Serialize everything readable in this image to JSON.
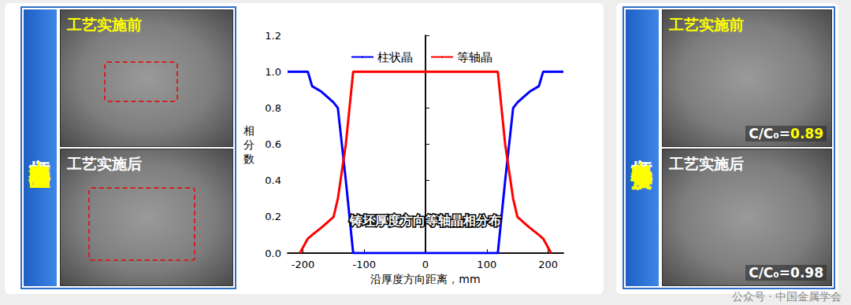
{
  "panels": [
    {
      "title_parts": [
        "方坯",
        "中心等轴晶区"
      ],
      "photos": [
        {
          "label": "工艺实施前"
        },
        {
          "label": "工艺实施后"
        }
      ]
    },
    {
      "title_parts": [
        "方坯",
        "中心低倍质量"
      ],
      "photos": [
        {
          "label": "工艺实施前",
          "ratio_label": "C/C₀=",
          "ratio": 0.89
        },
        {
          "label": "工艺实施后",
          "ratio_label": "C/C₀=",
          "ratio": 0.98
        }
      ]
    }
  ],
  "chart_data": {
    "type": "line",
    "caption": "铸坯厚度方向等轴晶相分布",
    "x_label": "沿厚度方向距离，mm",
    "y_label": "相分数",
    "x": [
      -225,
      -205,
      -192,
      -185,
      -170,
      -160,
      -150,
      -143,
      -130,
      -118,
      118,
      130,
      143,
      150,
      160,
      170,
      185,
      192,
      205,
      225
    ],
    "series": [
      {
        "name": "柱状晶",
        "color": "#0000ff",
        "values": [
          1.0,
          1.0,
          1.0,
          0.92,
          0.89,
          0.86,
          0.83,
          0.8,
          0.4,
          0.0,
          0.0,
          0.4,
          0.8,
          0.83,
          0.86,
          0.89,
          0.92,
          1.0,
          1.0,
          1.0
        ]
      },
      {
        "name": "等轴晶",
        "color": "#ff0000",
        "values": [
          null,
          0.0,
          0.08,
          0.1,
          0.14,
          0.17,
          0.2,
          0.3,
          0.6,
          1.0,
          1.0,
          0.6,
          0.3,
          0.2,
          0.17,
          0.14,
          0.1,
          0.08,
          0.0,
          null
        ]
      }
    ],
    "xlim": [
      -225,
      225
    ],
    "xticks": [
      -200,
      -100,
      0,
      100,
      200
    ],
    "ylim": [
      0,
      1.2
    ],
    "yticks": [
      {
        "value": 0,
        "label": "0.0"
      },
      {
        "value": 0.2,
        "label": "0.2"
      },
      {
        "value": 0.4,
        "label": "0.4"
      },
      {
        "value": 0.6,
        "label": "0.6"
      },
      {
        "value": 0.8,
        "label": "0.8"
      },
      {
        "value": 1.0,
        "label": "1.0"
      },
      {
        "value": 1.2,
        "label": "1.2"
      }
    ],
    "legend": "top"
  },
  "watermark": "公众号 · 中国金属学会"
}
